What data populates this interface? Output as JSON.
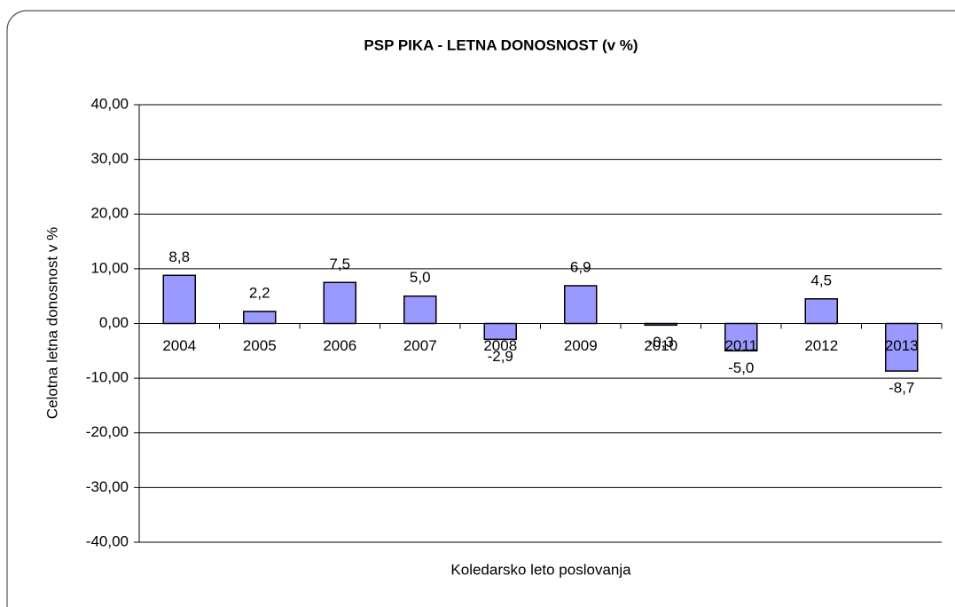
{
  "chart_data": {
    "type": "bar",
    "title": "PSP PIKA - LETNA DONOSNOST (v %)",
    "x_label": "Koledarsko leto poslovanja",
    "y_label": "Celotna letna donosnost v %",
    "categories": [
      "2004",
      "2005",
      "2006",
      "2007",
      "2008",
      "2009",
      "2010",
      "2011",
      "2012",
      "2013"
    ],
    "values": [
      8.8,
      2.2,
      7.5,
      5.0,
      -2.9,
      6.9,
      -0.3,
      -5.0,
      4.5,
      -8.7
    ],
    "value_labels": [
      "8,8",
      "2,2",
      "7,5",
      "5,0",
      "-2,9",
      "6,9",
      "-0,3",
      "-5,0",
      "4,5",
      "-8,7"
    ],
    "color": "#9999ff",
    "ylim": [
      -40,
      40
    ],
    "yticks": [
      {
        "value": -40,
        "label": "-40,00"
      },
      {
        "value": -30,
        "label": "-30,00"
      },
      {
        "value": -20,
        "label": "-20,00"
      },
      {
        "value": -10,
        "label": "-10,00"
      },
      {
        "value": 0,
        "label": "0,00"
      },
      {
        "value": 10,
        "label": "10,00"
      },
      {
        "value": 20,
        "label": "20,00"
      },
      {
        "value": 30,
        "label": "30,00"
      },
      {
        "value": 40,
        "label": "40,00"
      }
    ],
    "grid": true
  }
}
